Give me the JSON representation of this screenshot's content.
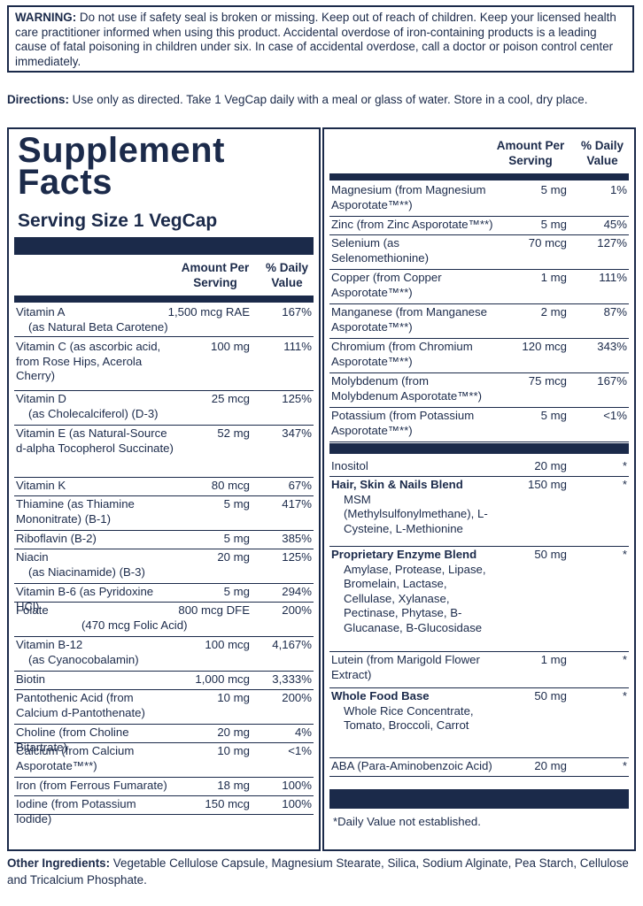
{
  "warning": {
    "label": "WARNING:",
    "text": " Do not use if safety seal is broken or missing. Keep out of reach of children. Keep your licensed health care practitioner informed when using this product. Accidental overdose of iron-containing products is a leading cause of fatal poisoning in children under six. In case of accidental overdose, call a doctor or poison control center immediately."
  },
  "directions": {
    "label": "Directions:",
    "text": " Use only as directed. Take 1 VegCap daily with a meal or glass of water. Store in a cool, dry place."
  },
  "facts": {
    "title_line1": "Supplement",
    "title_line2": "Facts",
    "serving_size": "Serving Size 1 VegCap",
    "header_amount": "Amount Per Serving",
    "header_dv": "% Daily Value"
  },
  "left_rows": [
    {
      "name": "Vitamin A",
      "sub": "(as Natural Beta Carotene)",
      "amount": "1,500 mcg RAE",
      "dv": "167%"
    },
    {
      "name": "Vitamin C (as ascorbic acid, from Rose Hips, Acerola Cherry)",
      "sub": "",
      "amount": "100 mg",
      "dv": "111%"
    },
    {
      "name": "Vitamin D",
      "sub": "(as Cholecalciferol) (D-3)",
      "amount": "25 mcg",
      "dv": "125%"
    },
    {
      "name": "Vitamin E (as Natural-Source d-alpha Tocopherol Succinate)",
      "sub": "",
      "amount": "52 mg",
      "dv": "347%"
    },
    {
      "name": "Vitamin K",
      "sub": "",
      "amount": "80 mcg",
      "dv": "67%"
    },
    {
      "name": "Thiamine (as Thiamine Mononitrate) (B-1)",
      "sub": "",
      "amount": "5 mg",
      "dv": "417%"
    },
    {
      "name": "Riboflavin (B-2)",
      "sub": "",
      "amount": "5 mg",
      "dv": "385%"
    },
    {
      "name": "Niacin",
      "sub": "(as Niacinamide) (B-3)",
      "amount": "20 mg",
      "dv": "125%"
    },
    {
      "name": "Vitamin B-6 (as Pyridoxine HCl)",
      "sub": "",
      "amount": "5 mg",
      "dv": "294%"
    },
    {
      "name": "Folate",
      "sub": "(470 mcg Folic Acid)",
      "amount": "800 mcg DFE",
      "dv": "200%"
    },
    {
      "name": "Vitamin B-12",
      "sub": "(as Cyanocobalamin)",
      "amount": "100 mcg",
      "dv": "4,167%"
    },
    {
      "name": "Biotin",
      "sub": "",
      "amount": "1,000 mcg",
      "dv": "3,333%"
    },
    {
      "name": "Pantothenic Acid (from Calcium d-Pantothenate)",
      "sub": "",
      "amount": "10 mg",
      "dv": "200%"
    },
    {
      "name": "Choline (from Choline Bitartrate)",
      "sub": "",
      "amount": "20 mg",
      "dv": "4%"
    },
    {
      "name": "Calcium (from Calcium Asporotate™**)",
      "sub": "",
      "amount": "10 mg",
      "dv": "<1%"
    },
    {
      "name": "Iron (from Ferrous Fumarate)",
      "sub": "",
      "amount": "18 mg",
      "dv": "100%"
    },
    {
      "name": "Iodine (from Potassium Iodide)",
      "sub": "",
      "amount": "150 mcg",
      "dv": "100%"
    }
  ],
  "right_rows": [
    {
      "name": "Magnesium (from Magnesium Asporotate™**)",
      "sub": "",
      "amount": "5 mg",
      "dv": "1%"
    },
    {
      "name": "Zinc (from Zinc Asporotate™**)",
      "sub": "",
      "amount": "5 mg",
      "dv": "45%"
    },
    {
      "name": "Selenium (as Selenomethionine)",
      "sub": "",
      "amount": "70 mcg",
      "dv": "127%"
    },
    {
      "name": "Copper (from Copper Asporotate™**)",
      "sub": "",
      "amount": "1 mg",
      "dv": "111%"
    },
    {
      "name": "Manganese (from Manganese Asporotate™**)",
      "sub": "",
      "amount": "2 mg",
      "dv": "87%"
    },
    {
      "name": "Chromium (from Chromium Asporotate™**)",
      "sub": "",
      "amount": "120 mcg",
      "dv": "343%"
    },
    {
      "name": "Molybdenum (from Molybdenum Asporotate™**)",
      "sub": "",
      "amount": "75 mcg",
      "dv": "167%"
    },
    {
      "name": "Potassium (from Potassium Asporotate™**)",
      "sub": "",
      "amount": "5 mg",
      "dv": "<1%"
    },
    {
      "name": "Inositol",
      "sub": "",
      "amount": "20 mg",
      "dv": "*"
    },
    {
      "name": "Hair, Skin & Nails Blend",
      "bold": true,
      "sub": "MSM (Methylsulfonylmethane), L-Cysteine, L-Methionine",
      "amount": "150 mg",
      "dv": "*"
    },
    {
      "name": "Proprietary Enzyme Blend",
      "bold": true,
      "sub": "Amylase, Protease, Lipase, Bromelain, Lactase, Cellulase, Xylanase, Pectinase, Phytase, B-Glucanase, B-Glucosidase",
      "amount": "50 mg",
      "dv": "*"
    },
    {
      "name": "Lutein (from Marigold Flower Extract)",
      "sub": "",
      "amount": "1 mg",
      "dv": "*"
    },
    {
      "name": "Whole Food Base",
      "bold": true,
      "sub": "Whole Rice Concentrate, Tomato, Broccoli, Carrot",
      "amount": "50 mg",
      "dv": "*"
    },
    {
      "name": "ABA (Para-Aminobenzoic Acid)",
      "sub": "",
      "amount": "20 mg",
      "dv": "*"
    }
  ],
  "footnote": "*Daily Value not established.",
  "other": {
    "label": "Other Ingredients:",
    "text": " Vegetable Cellulose Capsule, Magnesium Stearate, Silica, Sodium Alginate, Pea Starch, Cellulose and Tricalcium Phosphate."
  }
}
